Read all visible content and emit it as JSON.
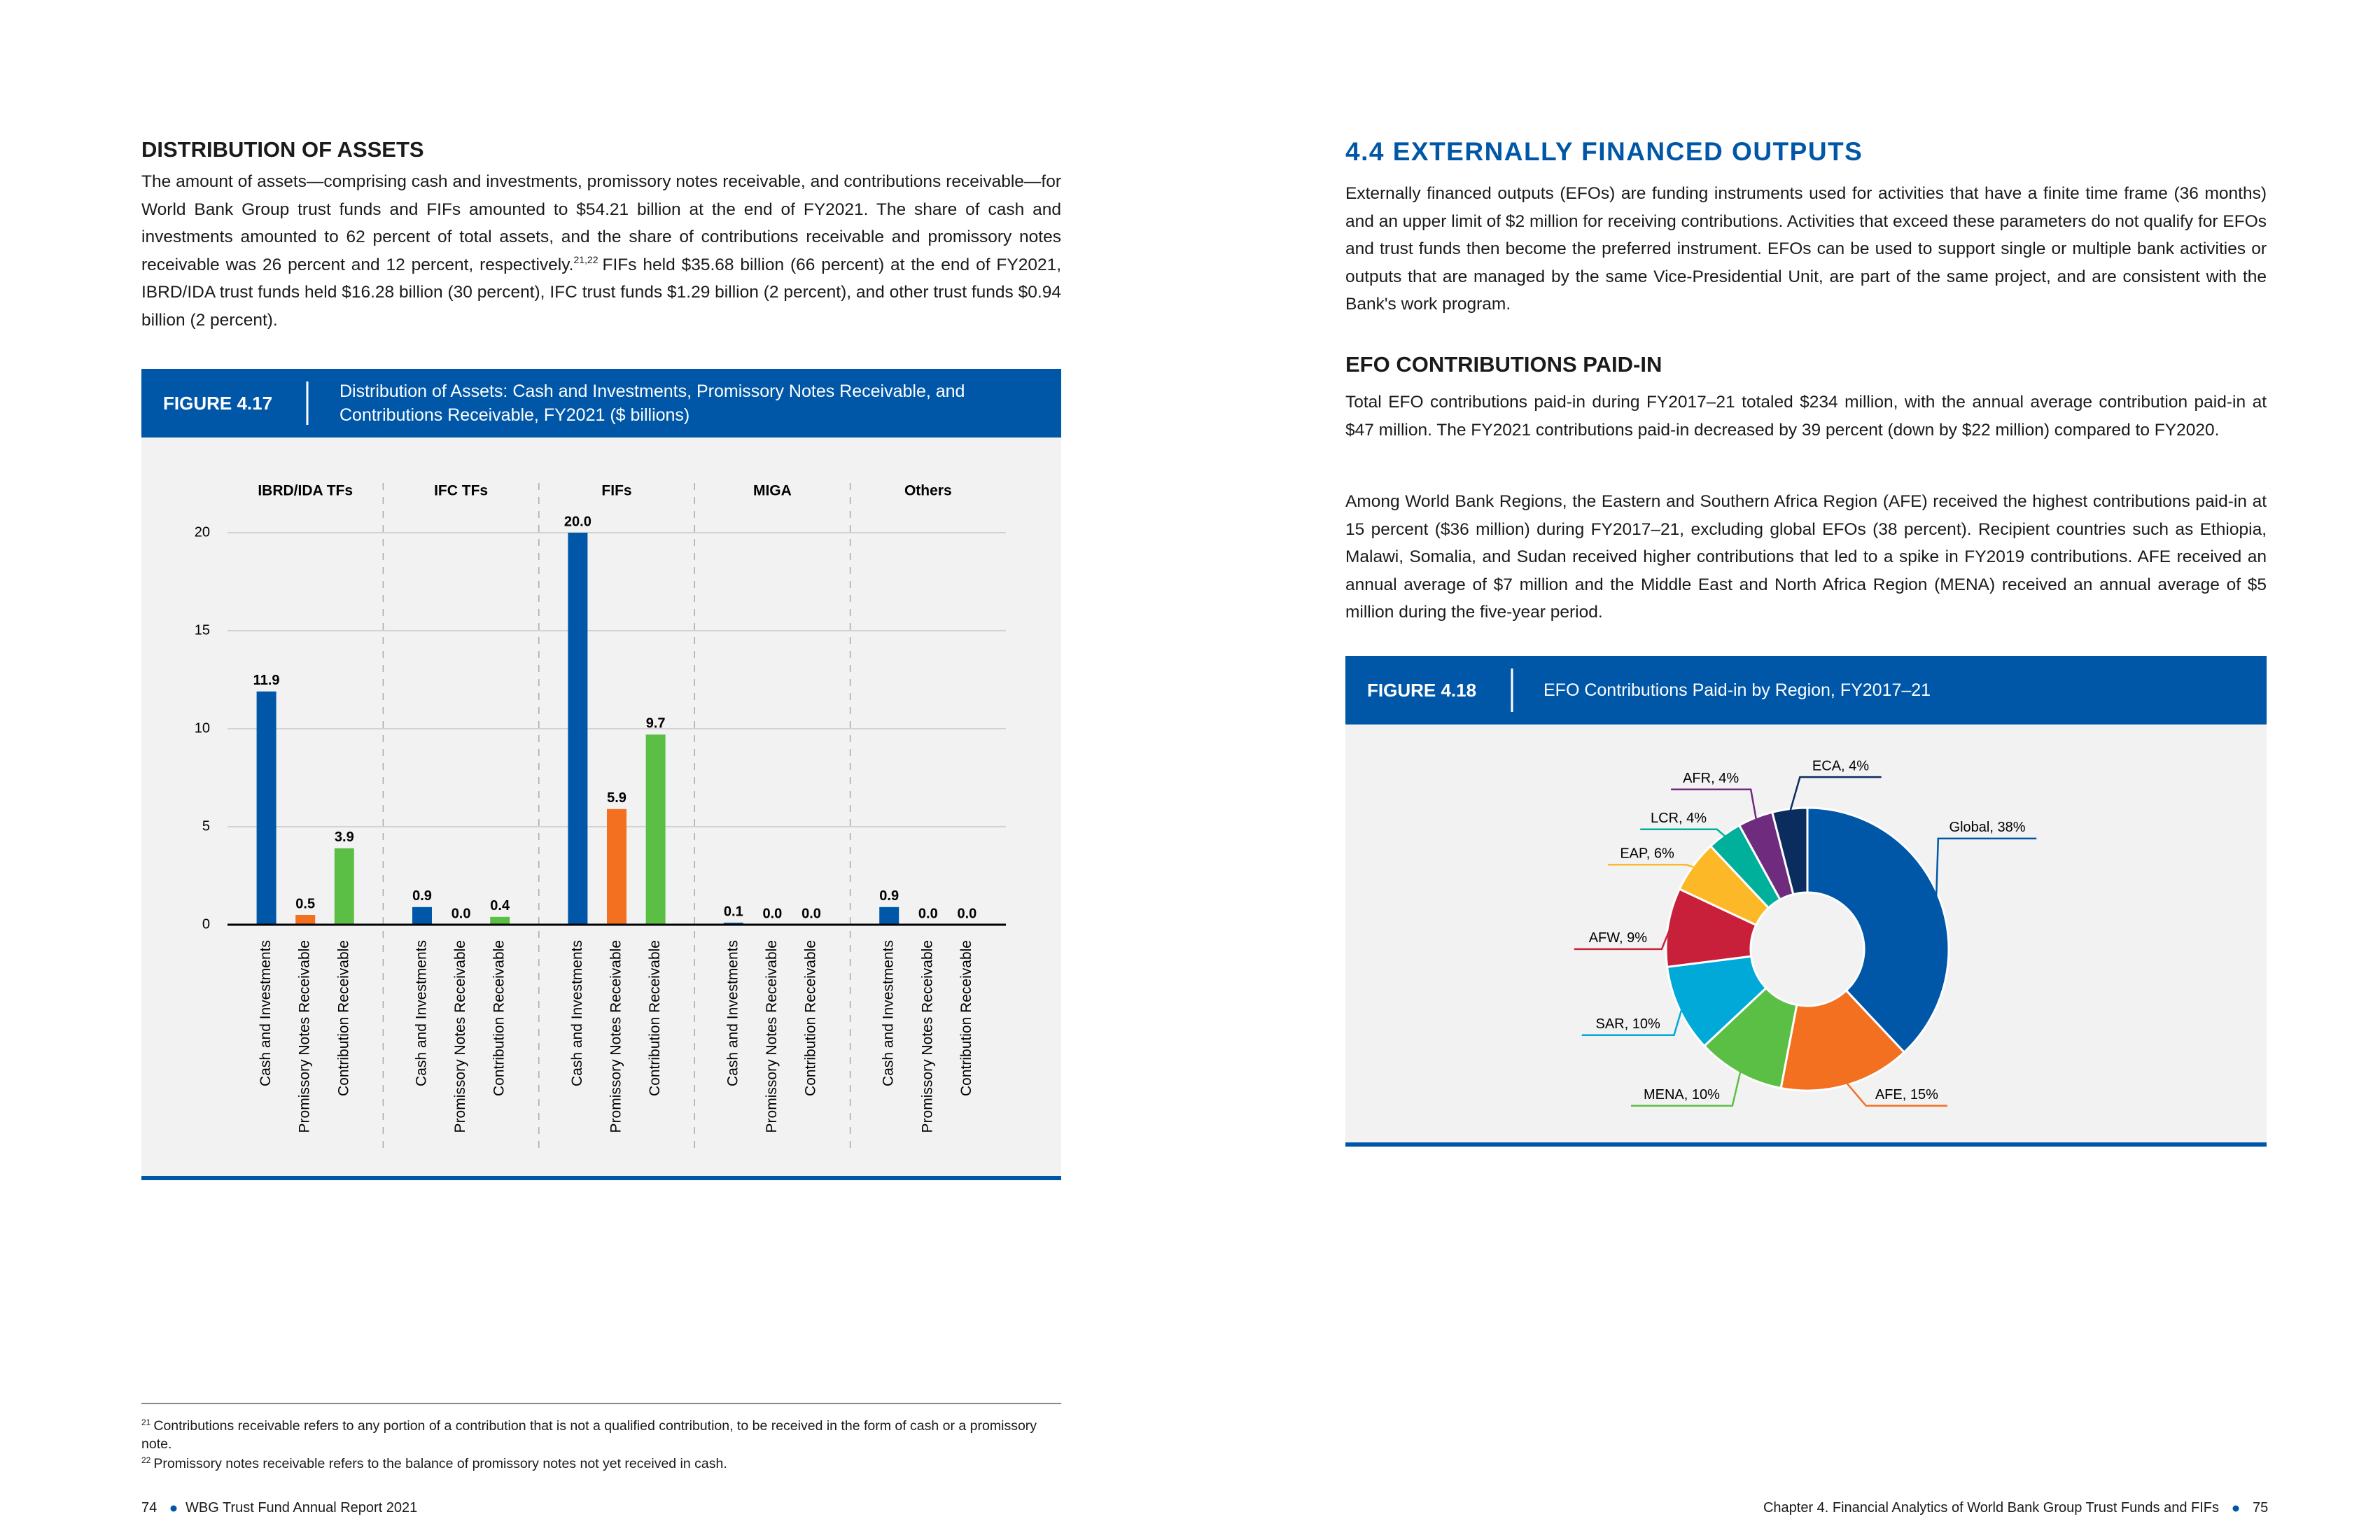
{
  "left_page": {
    "heading": "DISTRIBUTION OF ASSETS",
    "paragraph": {
      "text": "The amount of assets—comprising cash and investments, promissory notes receivable, and contributions receivable—for World Bank Group trust funds and FIFs amounted to $54.21 billion at the end of FY2021. The share of cash and investments amounted to 62 percent of total assets, and the share of contributions receivable and promissory notes receivable was 26 percent and 12 percent, respectively.",
      "superscript": "21,22",
      "continuation": "FIFs held $35.68 billion (66 percent) at the end of FY2021, IBRD/IDA trust funds held $16.28 billion (30 percent), IFC trust funds $1.29 billion (2 percent), and other trust funds $0.94 billion (2 percent)."
    },
    "figure": {
      "label": "FIGURE 4.17",
      "title": "Distribution of Assets: Cash and Investments, Promissory Notes Receivable, and Contributions Receivable, FY2021 ($ billions)"
    },
    "footnotes": [
      {
        "number": "21",
        "text": "Contributions receivable refers to any portion of a contribution that is not a qualified contribution, to be received in the form of cash or a promissory note."
      },
      {
        "number": "22",
        "text": "Promissory notes receivable refers to the balance of promissory notes not yet received in cash."
      }
    ],
    "footer": {
      "page_number": "74",
      "title": "WBG Trust Fund Annual Report 2021"
    }
  },
  "right_page": {
    "heading": "4.4 EXTERNALLY FINANCED OUTPUTS",
    "paragraph": "Externally financed outputs (EFOs) are funding instruments used for activities that have a finite time frame (36 months) and an upper limit of $2 million for receiving contributions. Activities that exceed these parameters do not qualify for EFOs and trust funds then become the preferred instrument. EFOs can be used to support single or multiple bank activities or outputs that are managed by the same Vice-Presidential Unit, are part of the same project, and are consistent with the Bank's work program.",
    "subheading": "EFO CONTRIBUTIONS PAID-IN",
    "paragraphs": [
      "Total EFO contributions paid-in during FY2017–21 totaled $234 million, with the annual average contribution paid-in at $47 million. The FY2021 contributions paid-in decreased by 39 percent (down by $22 million) compared to FY2020.",
      "Among World Bank Regions, the Eastern and Southern Africa Region (AFE) received the highest contributions paid-in at 15 percent ($36 million) during FY2017–21, excluding global EFOs (38 percent). Recipient countries such as Ethiopia, Malawi, Somalia, and Sudan received higher contributions that led to a spike in FY2019 contributions. AFE received an annual average of $7 million and the Middle East and North Africa Region (MENA) received an annual average of $5 million during the five-year period."
    ],
    "figure": {
      "label": "FIGURE 4.18",
      "title": "EFO Contributions Paid-in by Region, FY2017–21"
    },
    "footer": {
      "title": "Chapter 4. Financial Analytics of World Bank Group Trust Funds and FIFs",
      "page_number": "75"
    }
  },
  "chart_data": [
    {
      "type": "bar",
      "categories": [
        "IBRD/IDA TFs",
        "IFC TFs",
        "FIFs",
        "MIGA",
        "Others"
      ],
      "series": [
        {
          "name": "Cash and Investments",
          "color": "#0057a8",
          "values": [
            11.9,
            0.9,
            20.0,
            0.1,
            0.9
          ],
          "value_labels": [
            "11.9",
            "0.9",
            "20.0",
            "0.1",
            "0.9"
          ]
        },
        {
          "name": "Promissory Notes Receivable",
          "color": "#f37021",
          "values": [
            0.5,
            0.0,
            5.9,
            0.0,
            0.0
          ],
          "value_labels": [
            "0.5",
            "0.0",
            "5.9",
            "0.0",
            "0.0"
          ]
        },
        {
          "name": "Contribution Receivable",
          "color": "#5bbf45",
          "values": [
            3.9,
            0.4,
            9.7,
            0.0,
            0.0
          ],
          "value_labels": [
            "3.9",
            "0.4",
            "9.7",
            "0.0",
            "0.0"
          ]
        }
      ],
      "ylim": [
        0,
        20
      ],
      "yticks": [
        0,
        5,
        10,
        15,
        20
      ],
      "grid": true
    },
    {
      "type": "donut",
      "categories": [
        "Global",
        "AFE",
        "MENA",
        "SAR",
        "AFW",
        "EAP",
        "LCR",
        "AFR",
        "ECA"
      ],
      "values": [
        38,
        15,
        10,
        10,
        9,
        6,
        4,
        4,
        4
      ],
      "value_labels": [
        "Global, 38%",
        "AFE, 15%",
        "MENA, 10%",
        "SAR, 10%",
        "AFW, 9%",
        "EAP, 6%",
        "LCR, 4%",
        "AFR, 4%",
        "ECA, 4%"
      ],
      "colors": [
        "#0057a8",
        "#f37021",
        "#5bbf45",
        "#00a9d8",
        "#c8203a",
        "#fdb827",
        "#00b09b",
        "#6f2c7f",
        "#0a2d5e"
      ]
    }
  ]
}
